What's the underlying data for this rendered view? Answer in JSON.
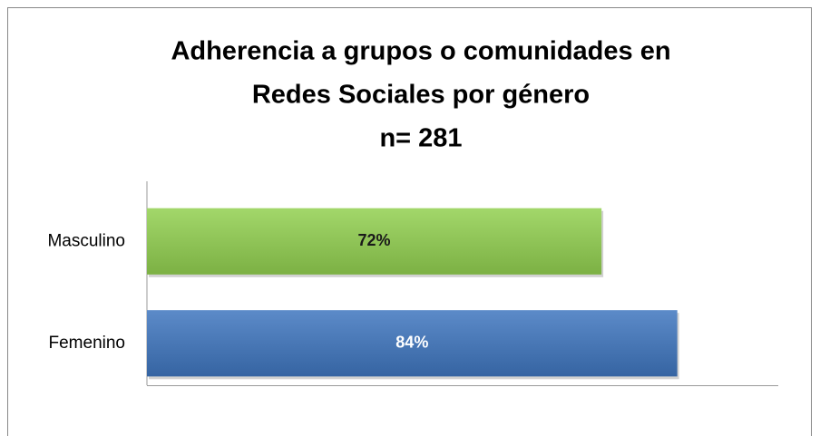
{
  "chart_data": {
    "type": "bar",
    "orientation": "horizontal",
    "title": [
      "Adherencia a grupos o comunidades en",
      "Redes Sociales  por género"
    ],
    "subtitle": "n= 281",
    "categories": [
      "Masculino",
      "Femenino"
    ],
    "values": [
      72,
      84
    ],
    "value_labels": [
      "72%",
      "84%"
    ],
    "colors": [
      "#92d050",
      "#3f76bf"
    ],
    "xlim": [
      0,
      100
    ]
  }
}
